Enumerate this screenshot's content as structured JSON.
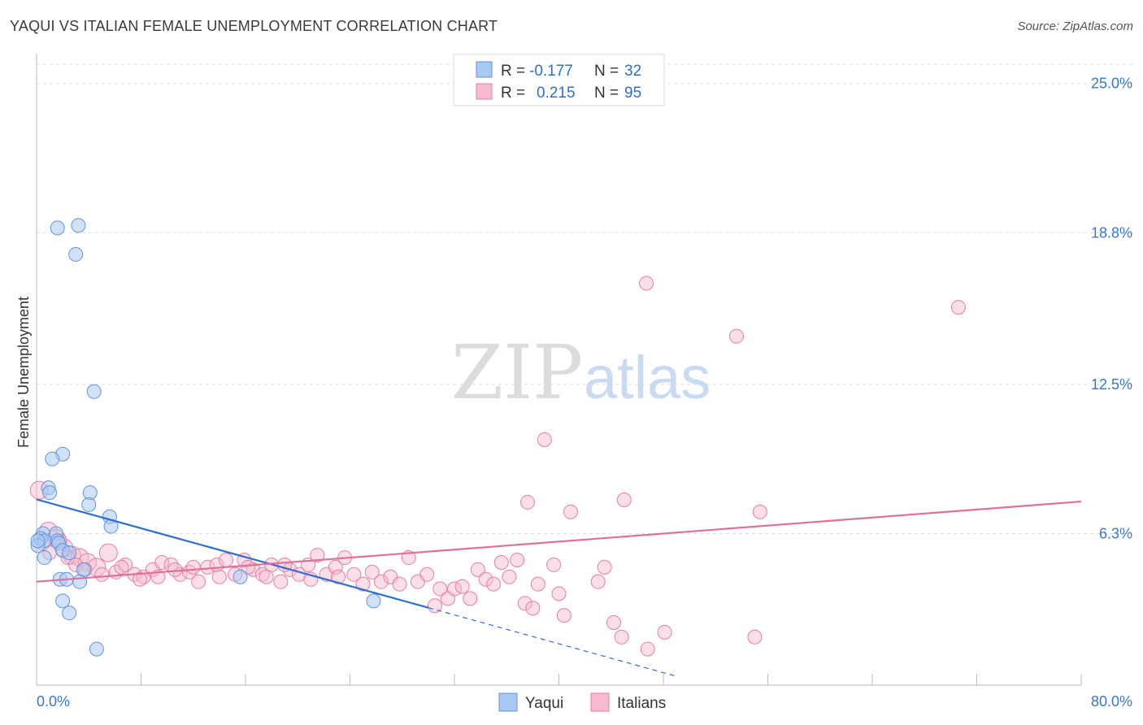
{
  "title": "YAQUI VS ITALIAN FEMALE UNEMPLOYMENT CORRELATION CHART",
  "source": "Source: ZipAtlas.com",
  "watermark": {
    "zip": "ZIP",
    "atlas": "atlas"
  },
  "legend": {
    "r_label": "R =",
    "n_label": "N =",
    "series": [
      {
        "name": "Yaqui",
        "r": "-0.177",
        "n": "32",
        "color": "#a9c8f2",
        "stroke": "#5f95de"
      },
      {
        "name": "Italians",
        "r": "0.215",
        "n": "95",
        "color": "#f7b9cc",
        "stroke": "#e87ea0"
      }
    ]
  },
  "chart_data": {
    "type": "scatter",
    "title": "YAQUI VS ITALIAN FEMALE UNEMPLOYMENT CORRELATION CHART",
    "xlabel": "",
    "ylabel": "Female Unemployment",
    "xlim": [
      0,
      80
    ],
    "ylim": [
      0,
      25.8
    ],
    "x_tick_labels": [
      "0.0%",
      "80.0%"
    ],
    "y_ticks": [
      6.3,
      12.5,
      18.8,
      25.0
    ],
    "y_tick_labels": [
      "6.3%",
      "12.5%",
      "18.8%",
      "25.0%"
    ],
    "series": [
      {
        "name": "Yaqui",
        "color": "#5f95de",
        "points": [
          [
            1.6,
            19.0
          ],
          [
            3.2,
            19.1
          ],
          [
            3.0,
            17.9
          ],
          [
            4.4,
            12.2
          ],
          [
            2.0,
            9.6
          ],
          [
            1.2,
            9.4
          ],
          [
            0.9,
            8.2
          ],
          [
            1.0,
            8.0
          ],
          [
            4.1,
            8.0
          ],
          [
            4.0,
            7.5
          ],
          [
            5.6,
            7.0
          ],
          [
            5.7,
            6.6
          ],
          [
            0.5,
            6.3
          ],
          [
            0.3,
            6.1
          ],
          [
            0.6,
            6.0
          ],
          [
            1.5,
            6.3
          ],
          [
            1.6,
            6.0
          ],
          [
            1.7,
            5.9
          ],
          [
            2.0,
            5.6
          ],
          [
            2.5,
            5.5
          ],
          [
            0.1,
            5.8
          ],
          [
            0.6,
            5.3
          ],
          [
            3.6,
            4.8
          ],
          [
            1.8,
            4.4
          ],
          [
            2.3,
            4.4
          ],
          [
            3.3,
            4.3
          ],
          [
            15.6,
            4.5
          ],
          [
            2.0,
            3.5
          ],
          [
            2.5,
            3.0
          ],
          [
            25.8,
            3.5
          ],
          [
            4.6,
            1.5
          ],
          [
            0.1,
            6.0
          ]
        ]
      },
      {
        "name": "Italians",
        "color": "#e87ea0",
        "points": [
          [
            0.2,
            8.1
          ],
          [
            0.9,
            6.4
          ],
          [
            1.5,
            6.1
          ],
          [
            2.1,
            5.7
          ],
          [
            2.7,
            5.4
          ],
          [
            3.3,
            5.3
          ],
          [
            3.9,
            5.1
          ],
          [
            4.6,
            4.9
          ],
          [
            5.5,
            5.5
          ],
          [
            6.1,
            4.7
          ],
          [
            6.8,
            5.0
          ],
          [
            7.5,
            4.6
          ],
          [
            8.2,
            4.5
          ],
          [
            8.9,
            4.8
          ],
          [
            9.6,
            5.1
          ],
          [
            10.3,
            5.0
          ],
          [
            11.0,
            4.6
          ],
          [
            11.7,
            4.7
          ],
          [
            12.4,
            4.3
          ],
          [
            13.1,
            4.9
          ],
          [
            13.8,
            5.0
          ],
          [
            14.5,
            5.2
          ],
          [
            15.2,
            4.6
          ],
          [
            15.9,
            5.2
          ],
          [
            16.6,
            4.8
          ],
          [
            17.3,
            4.6
          ],
          [
            18.0,
            5.0
          ],
          [
            18.7,
            4.3
          ],
          [
            19.4,
            4.8
          ],
          [
            20.1,
            4.6
          ],
          [
            20.8,
            5.0
          ],
          [
            21.5,
            5.4
          ],
          [
            22.2,
            4.6
          ],
          [
            22.9,
            4.9
          ],
          [
            23.6,
            5.3
          ],
          [
            24.3,
            4.6
          ],
          [
            25.0,
            4.2
          ],
          [
            25.7,
            4.7
          ],
          [
            26.4,
            4.3
          ],
          [
            27.1,
            4.5
          ],
          [
            27.8,
            4.2
          ],
          [
            28.5,
            5.3
          ],
          [
            29.2,
            4.3
          ],
          [
            29.9,
            4.6
          ],
          [
            30.5,
            3.3
          ],
          [
            30.9,
            4.0
          ],
          [
            31.5,
            3.6
          ],
          [
            32.0,
            4.0
          ],
          [
            32.6,
            4.1
          ],
          [
            33.2,
            3.6
          ],
          [
            33.8,
            4.8
          ],
          [
            34.4,
            4.4
          ],
          [
            35.0,
            4.2
          ],
          [
            35.6,
            5.1
          ],
          [
            36.2,
            4.5
          ],
          [
            36.8,
            5.2
          ],
          [
            37.4,
            3.4
          ],
          [
            37.6,
            7.6
          ],
          [
            38.0,
            3.2
          ],
          [
            38.4,
            4.2
          ],
          [
            38.9,
            10.2
          ],
          [
            39.6,
            5.0
          ],
          [
            40.0,
            3.8
          ],
          [
            40.4,
            2.9
          ],
          [
            40.9,
            7.2
          ],
          [
            43.0,
            4.3
          ],
          [
            43.5,
            4.9
          ],
          [
            44.2,
            2.6
          ],
          [
            44.8,
            2.0
          ],
          [
            45.0,
            7.7
          ],
          [
            46.7,
            16.7
          ],
          [
            46.8,
            1.5
          ],
          [
            48.1,
            2.2
          ],
          [
            53.6,
            14.5
          ],
          [
            55.4,
            7.2
          ],
          [
            55.0,
            2.0
          ],
          [
            70.6,
            15.7
          ],
          [
            0.5,
            5.9
          ],
          [
            1.0,
            5.5
          ],
          [
            1.8,
            6.0
          ],
          [
            2.4,
            5.3
          ],
          [
            3.0,
            5.0
          ],
          [
            3.7,
            4.8
          ],
          [
            5.0,
            4.6
          ],
          [
            6.5,
            4.9
          ],
          [
            7.9,
            4.4
          ],
          [
            9.3,
            4.5
          ],
          [
            10.6,
            4.8
          ],
          [
            12.0,
            4.9
          ],
          [
            14.0,
            4.5
          ],
          [
            16.2,
            4.9
          ],
          [
            17.6,
            4.5
          ],
          [
            19.0,
            5.0
          ],
          [
            21.0,
            4.4
          ],
          [
            23.1,
            4.5
          ]
        ]
      }
    ],
    "trend_lines": [
      {
        "series": "Yaqui",
        "x": [
          0,
          30
        ],
        "y": [
          7.72,
          3.22
        ],
        "dashed_extension_to_x": 49
      },
      {
        "series": "Italians",
        "x": [
          0,
          80
        ],
        "y": [
          4.3,
          7.63
        ]
      }
    ]
  }
}
